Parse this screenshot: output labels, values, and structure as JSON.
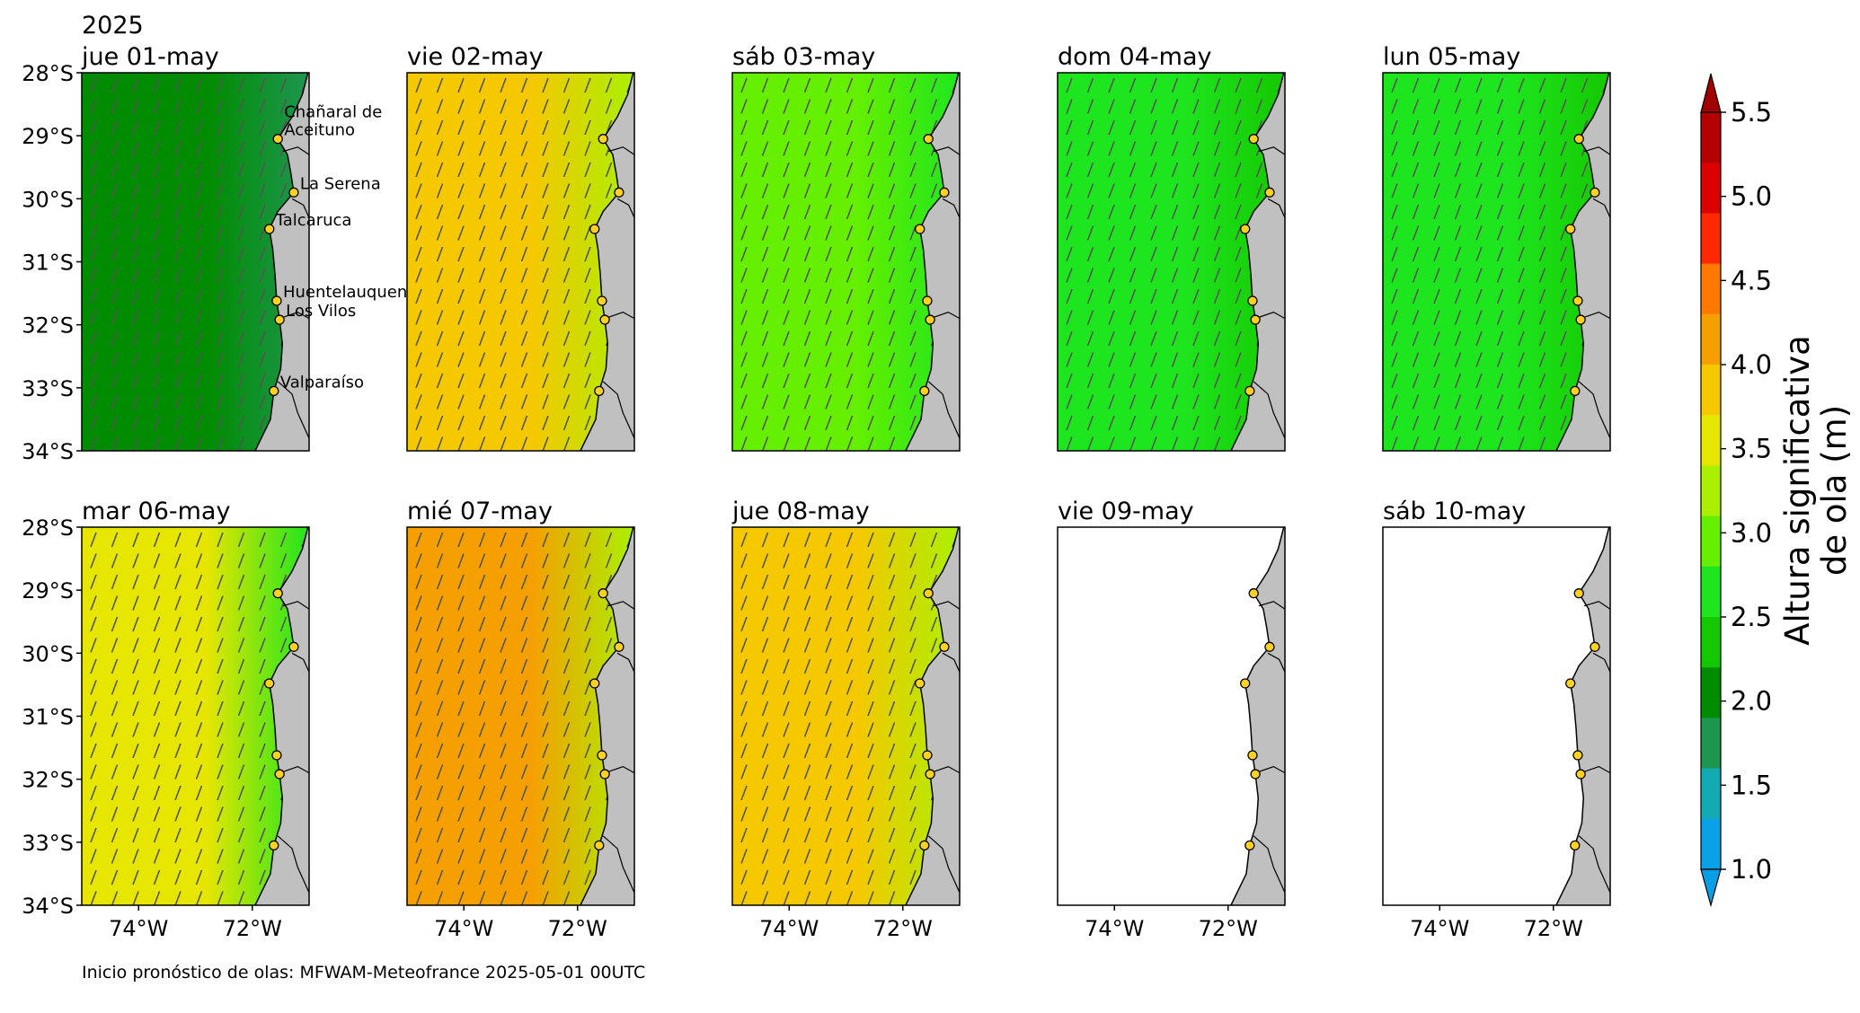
{
  "header": {
    "year": "2025"
  },
  "footer": {
    "note": "Inicio pronóstico de olas: MFWAM-Meteofrance 2025-05-01 00UTC"
  },
  "axes": {
    "lat_ticks": [
      "28°S",
      "29°S",
      "30°S",
      "31°S",
      "32°S",
      "33°S",
      "34°S"
    ],
    "lon_ticks": [
      "74°W",
      "72°W"
    ]
  },
  "colorbar": {
    "label_line1": "Altura significativa",
    "label_line2": "de ola (m)",
    "ticks": [
      "1.0",
      "1.5",
      "2.0",
      "2.5",
      "3.0",
      "3.5",
      "4.0",
      "4.5",
      "5.0",
      "5.5"
    ],
    "min": 1.0,
    "max": 5.5,
    "extend": "both"
  },
  "chart_data": {
    "type": "heatmap",
    "variable": "Altura significativa de ola (m)",
    "lat_range": [
      -34,
      -28
    ],
    "lon_range": [
      -75,
      -71
    ],
    "locations": [
      {
        "name": "Chañaral de Aceituno",
        "lat": -29.05,
        "lon": -71.55
      },
      {
        "name": "La Serena",
        "lat": -29.9,
        "lon": -71.27
      },
      {
        "name": "Talcaruca",
        "lat": -30.48,
        "lon": -71.7
      },
      {
        "name": "Huentelauquen",
        "lat": -31.62,
        "lon": -71.57
      },
      {
        "name": "Los Vilos",
        "lat": -31.92,
        "lon": -71.52
      },
      {
        "name": "Valparaíso",
        "lat": -33.05,
        "lon": -71.62
      }
    ],
    "panels": [
      {
        "title": "jue 01-may",
        "has_data": true,
        "offshore_hs": 2.1,
        "nearshore_hs": 1.6,
        "show_labels": true
      },
      {
        "title": "vie 02-may",
        "has_data": true,
        "offshore_hs": 3.8,
        "nearshore_hs": 3.3,
        "show_labels": false
      },
      {
        "title": "sáb 03-may",
        "has_data": true,
        "offshore_hs": 3.0,
        "nearshore_hs": 2.6,
        "show_labels": false
      },
      {
        "title": "dom 04-may",
        "has_data": true,
        "offshore_hs": 2.5,
        "nearshore_hs": 2.2,
        "show_labels": false
      },
      {
        "title": "lun 05-may",
        "has_data": true,
        "offshore_hs": 2.5,
        "nearshore_hs": 2.2,
        "show_labels": false
      },
      {
        "title": "mar 06-may",
        "has_data": true,
        "offshore_hs": 3.4,
        "nearshore_hs": 2.8,
        "show_labels": false
      },
      {
        "title": "mié 07-may",
        "has_data": true,
        "offshore_hs": 4.2,
        "nearshore_hs": 3.3,
        "show_labels": false
      },
      {
        "title": "jue 08-may",
        "has_data": true,
        "offshore_hs": 3.7,
        "nearshore_hs": 3.2,
        "show_labels": false
      },
      {
        "title": "vie 09-may",
        "has_data": false,
        "show_labels": false
      },
      {
        "title": "sáb 10-may",
        "has_data": false,
        "show_labels": false
      }
    ]
  },
  "colors": {
    "land": "#c0c0c0",
    "marker": "#ffd21f",
    "arrow": "#555555",
    "colormap": [
      "#0aa0e6",
      "#14aab4",
      "#1e9650",
      "#008c00",
      "#14c800",
      "#1ee61e",
      "#64f000",
      "#aaf000",
      "#e6e600",
      "#f5c800",
      "#f5a000",
      "#ff7800",
      "#ff2800",
      "#dc0000",
      "#b40000"
    ]
  }
}
